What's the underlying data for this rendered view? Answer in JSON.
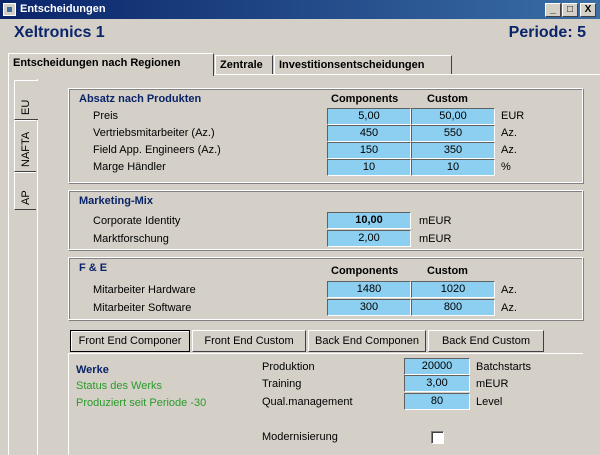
{
  "window": {
    "title": "Entscheidungen",
    "minimize": "_",
    "maximize": "□",
    "close": "X"
  },
  "header": {
    "company": "Xeltronics 1",
    "periode": "Periode: 5"
  },
  "tabs": [
    {
      "label": "Entscheidungen nach Regionen"
    },
    {
      "label": "Zentrale"
    },
    {
      "label": "Investitionsentscheidungen"
    }
  ],
  "region_tabs": [
    {
      "label": "EU"
    },
    {
      "label": "NAFTA"
    },
    {
      "label": "AP"
    }
  ],
  "absatz": {
    "title": "Absatz nach Produkten",
    "col1": "Components",
    "col2": "Custom",
    "rows": [
      {
        "label": "Preis",
        "v1": "5,00",
        "v2": "50,00",
        "unit": "EUR"
      },
      {
        "label": "Vertriebsmitarbeiter (Az.)",
        "v1": "450",
        "v2": "550",
        "unit": "Az."
      },
      {
        "label": "Field App. Engineers (Az.)",
        "v1": "150",
        "v2": "350",
        "unit": "Az."
      },
      {
        "label": "Marge Händler",
        "v1": "10",
        "v2": "10",
        "unit": "%"
      }
    ]
  },
  "marketing": {
    "title": "Marketing-Mix",
    "rows": [
      {
        "label": "Corporate Identity",
        "value": "10,00",
        "unit": "mEUR"
      },
      {
        "label": "Marktforschung",
        "value": "2,00",
        "unit": "mEUR"
      }
    ]
  },
  "fe": {
    "title": "F & E",
    "col1": "Components",
    "col2": "Custom",
    "rows": [
      {
        "label": "Mitarbeiter Hardware",
        "v1": "1480",
        "v2": "1020",
        "unit": "Az."
      },
      {
        "label": "Mitarbeiter Software",
        "v1": "300",
        "v2": "800",
        "unit": "Az."
      }
    ]
  },
  "subtabs": [
    {
      "label": "Front End Componer"
    },
    {
      "label": "Front End Custom"
    },
    {
      "label": "Back End Componen"
    },
    {
      "label": "Back End Custom"
    }
  ],
  "werke": {
    "title": "Werke",
    "status": "Status des Werks",
    "produziert": "Produziert seit Periode -30",
    "rows": [
      {
        "label": "Produktion",
        "value": "20000",
        "unit": "Batchstarts"
      },
      {
        "label": "Training",
        "value": "3,00",
        "unit": "mEUR"
      },
      {
        "label": "Qual.management",
        "value": "80",
        "unit": "Level"
      }
    ],
    "modernisierung": "Modernisierung"
  }
}
